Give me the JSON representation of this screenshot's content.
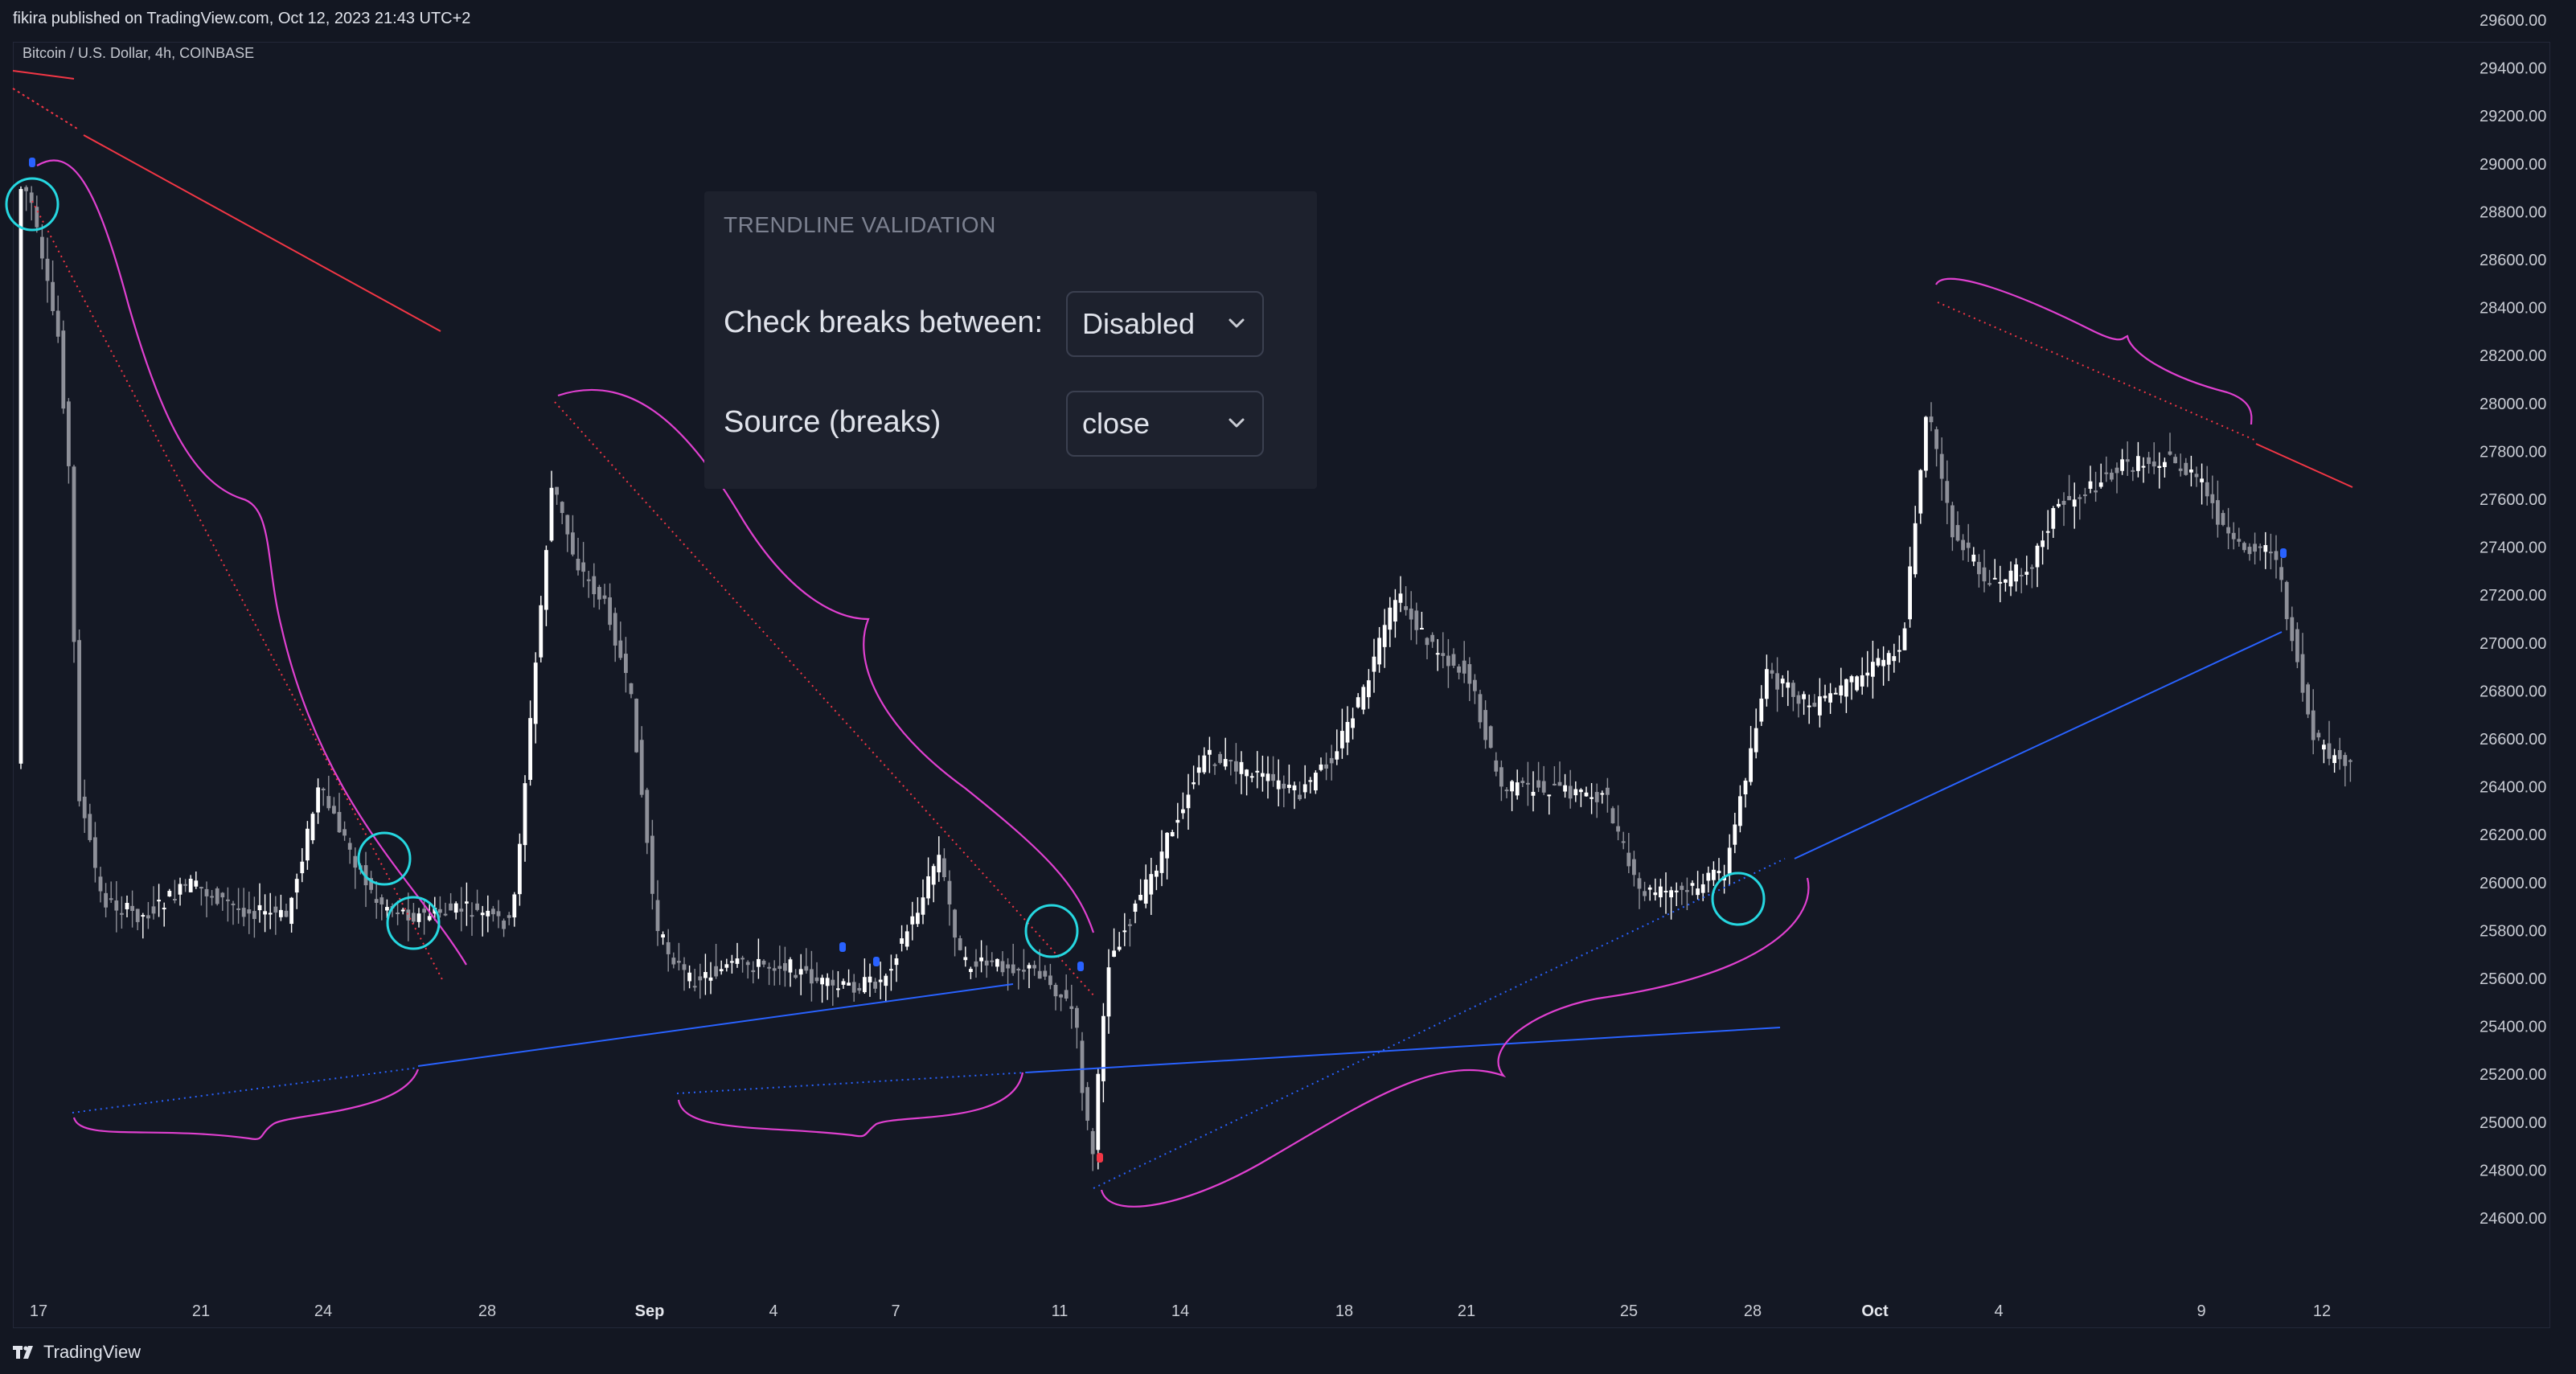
{
  "header": {
    "publish_text": "fikira published on TradingView.com, Oct 12, 2023 21:43 UTC+2"
  },
  "chart": {
    "symbol_label": "Bitcoin / U.S. Dollar, 4h, COINBASE",
    "price_ticks": [
      "29600.00",
      "29400.00",
      "29200.00",
      "29000.00",
      "28800.00",
      "28600.00",
      "28400.00",
      "28200.00",
      "28000.00",
      "27800.00",
      "27600.00",
      "27400.00",
      "27200.00",
      "27000.00",
      "26800.00",
      "26600.00",
      "26400.00",
      "26200.00",
      "26000.00",
      "25800.00",
      "25600.00",
      "25400.00",
      "25200.00",
      "25000.00",
      "24800.00",
      "24600.00"
    ],
    "date_ticks": [
      {
        "label": "17",
        "bold": false
      },
      {
        "label": "21",
        "bold": false
      },
      {
        "label": "24",
        "bold": false
      },
      {
        "label": "28",
        "bold": false
      },
      {
        "label": "Sep",
        "bold": true
      },
      {
        "label": "4",
        "bold": false
      },
      {
        "label": "7",
        "bold": false
      },
      {
        "label": "11",
        "bold": false
      },
      {
        "label": "14",
        "bold": false
      },
      {
        "label": "18",
        "bold": false
      },
      {
        "label": "21",
        "bold": false
      },
      {
        "label": "25",
        "bold": false
      },
      {
        "label": "28",
        "bold": false
      },
      {
        "label": "Oct",
        "bold": true
      },
      {
        "label": "4",
        "bold": false
      },
      {
        "label": "9",
        "bold": false
      },
      {
        "label": "12",
        "bold": false
      }
    ],
    "colors": {
      "bull_candle": "#ffffff",
      "bear_candle": "#8e9099",
      "trend_up": "#2962ff",
      "trend_down": "#f23645",
      "annotation": "#e040d0",
      "highlight_circle": "#26d7e0",
      "background": "#131722"
    }
  },
  "validation_panel": {
    "title": "TRENDLINE VALIDATION",
    "check_breaks_label": "Check breaks between:",
    "check_breaks_value": "Disabled",
    "source_label": "Source (breaks)",
    "source_value": "close"
  },
  "footer": {
    "brand": "TradingView"
  }
}
